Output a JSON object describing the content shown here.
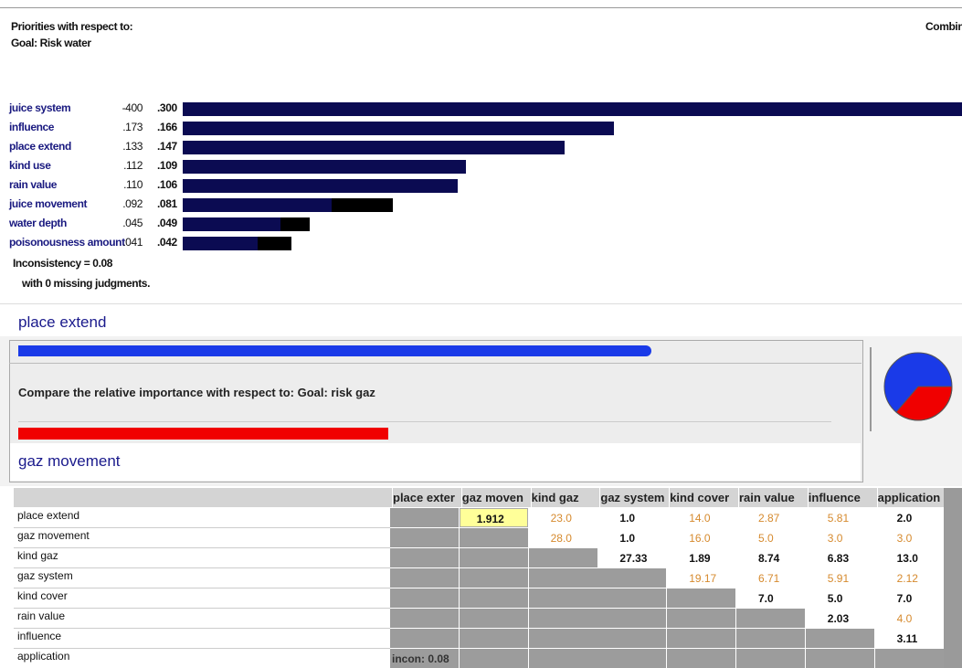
{
  "header": {
    "title": "Priorities with respect to:",
    "goal": "Goal: Risk water",
    "right_label": "Combine"
  },
  "priorities": {
    "names": [
      "juice system",
      "influence",
      "place extend",
      "kind use",
      "rain value",
      "juice movement",
      "water depth",
      "poisonousness amount"
    ],
    "local_labels": [
      "-400",
      ".173",
      ".133",
      ".112",
      ".110",
      ".092",
      ".045",
      ".041"
    ],
    "values": [
      0.3,
      0.166,
      0.147,
      0.109,
      0.106,
      0.081,
      0.049,
      0.042
    ],
    "value_labels": [
      ".300",
      ".166",
      ".147",
      ".109",
      ".106",
      ".081",
      ".049",
      ".042"
    ],
    "color": "#0b0b52",
    "inconsistency": "Inconsistency = 0.08",
    "missing": "with 0 missing judgments."
  },
  "comparison": {
    "left": "place extend",
    "question": "Compare the relative importance with respect to: Goal: risk gaz",
    "right": "gaz movement"
  },
  "matrix": {
    "columns": [
      "place exter",
      "gaz moven",
      "kind gaz",
      "gaz system",
      "kind cover",
      "rain value",
      "influence",
      "application"
    ],
    "rows": [
      {
        "label": "place extend",
        "cells": [
          null,
          {
            "text": "1.912",
            "inverse": false,
            "selected": true
          },
          {
            "text": "23.0",
            "inverse": true
          },
          {
            "text": "1.0",
            "inverse": false
          },
          {
            "text": "14.0",
            "inverse": true
          },
          {
            "text": "2.87",
            "inverse": true
          },
          {
            "text": "5.81",
            "inverse": true
          },
          {
            "text": "2.0",
            "inverse": false
          }
        ]
      },
      {
        "label": "gaz movement",
        "cells": [
          null,
          null,
          {
            "text": "28.0",
            "inverse": true
          },
          {
            "text": "1.0",
            "inverse": false
          },
          {
            "text": "16.0",
            "inverse": true
          },
          {
            "text": "5.0",
            "inverse": true
          },
          {
            "text": "3.0",
            "inverse": true
          },
          {
            "text": "3.0",
            "inverse": true
          }
        ]
      },
      {
        "label": "kind gaz",
        "cells": [
          null,
          null,
          null,
          {
            "text": "27.33",
            "inverse": false
          },
          {
            "text": "1.89",
            "inverse": false
          },
          {
            "text": "8.74",
            "inverse": false
          },
          {
            "text": "6.83",
            "inverse": false
          },
          {
            "text": "13.0",
            "inverse": false
          }
        ]
      },
      {
        "label": "gaz system",
        "cells": [
          null,
          null,
          null,
          null,
          {
            "text": "19.17",
            "inverse": true
          },
          {
            "text": "6.71",
            "inverse": true
          },
          {
            "text": "5.91",
            "inverse": true
          },
          {
            "text": "2.12",
            "inverse": true
          }
        ]
      },
      {
        "label": "kind cover",
        "cells": [
          null,
          null,
          null,
          null,
          null,
          {
            "text": "7.0",
            "inverse": false
          },
          {
            "text": "5.0",
            "inverse": false
          },
          {
            "text": "7.0",
            "inverse": false
          }
        ]
      },
      {
        "label": "rain value",
        "cells": [
          null,
          null,
          null,
          null,
          null,
          null,
          {
            "text": "2.03",
            "inverse": false
          },
          {
            "text": "4.0",
            "inverse": true
          }
        ]
      },
      {
        "label": "influence",
        "cells": [
          null,
          null,
          null,
          null,
          null,
          null,
          null,
          {
            "text": "3.11",
            "inverse": false
          }
        ]
      },
      {
        "label": "application",
        "cells": [
          null,
          null,
          null,
          null,
          null,
          null,
          null,
          null
        ]
      }
    ],
    "inconsistency": "incon: 0.08"
  }
}
